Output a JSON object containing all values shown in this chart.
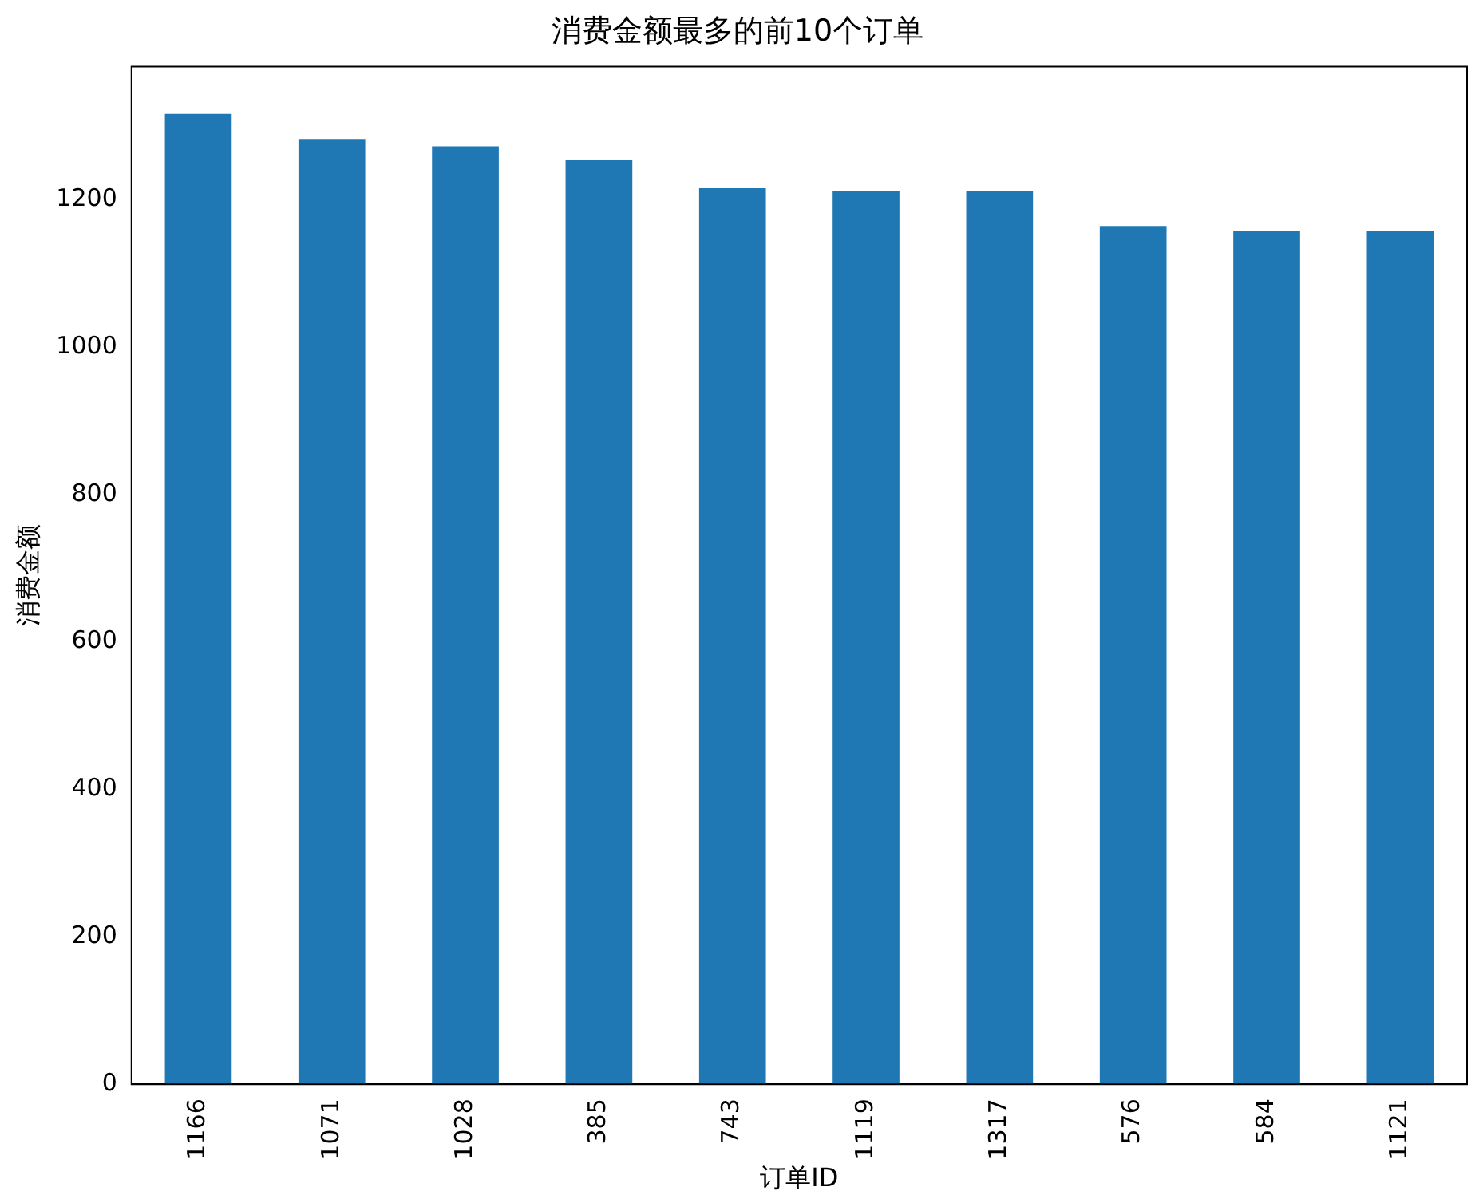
{
  "chart_data": {
    "type": "bar",
    "title": "消费金额最多的前10个订单",
    "xlabel": "订单ID",
    "ylabel": "消费金额",
    "categories": [
      "1166",
      "1071",
      "1028",
      "385",
      "743",
      "1119",
      "1317",
      "576",
      "584",
      "1121"
    ],
    "values": [
      1316,
      1282,
      1272,
      1254,
      1215,
      1212,
      1212,
      1164,
      1157,
      1157
    ],
    "color": "#1f77b4",
    "ylim": [
      0,
      1380
    ],
    "yticks": [
      0,
      200,
      400,
      600,
      800,
      1000,
      1200
    ],
    "grid": false,
    "legend": false
  }
}
